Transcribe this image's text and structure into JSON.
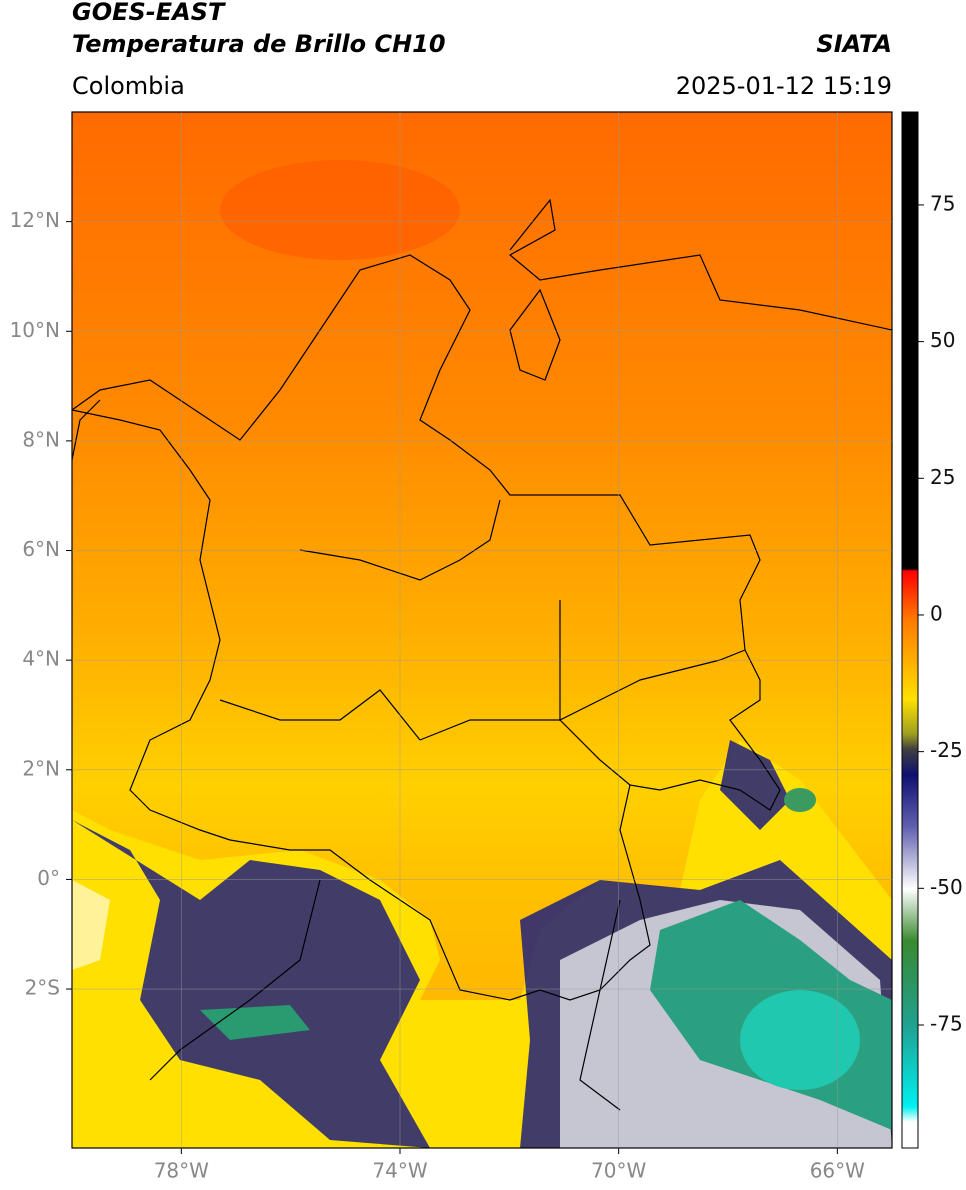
{
  "header": {
    "satellite": "GOES-EAST",
    "product": "Temperatura de Brillo CH10",
    "source": "SIATA",
    "region": "Colombia",
    "timestamp": "2025-01-12 15:19"
  },
  "map": {
    "xlim": [
      -80,
      -65
    ],
    "ylim": [
      -4.9,
      14
    ],
    "xticks": [
      {
        "value": -78,
        "label": "78°W"
      },
      {
        "value": -74,
        "label": "74°W"
      },
      {
        "value": -70,
        "label": "70°W"
      },
      {
        "value": -66,
        "label": "66°W"
      }
    ],
    "yticks": [
      {
        "value": 12,
        "label": "12°N"
      },
      {
        "value": 10,
        "label": "10°N"
      },
      {
        "value": 8,
        "label": "8°N"
      },
      {
        "value": 6,
        "label": "6°N"
      },
      {
        "value": 4,
        "label": "4°N"
      },
      {
        "value": 2,
        "label": "2°N"
      },
      {
        "value": 0,
        "label": "0°"
      },
      {
        "value": -2,
        "label": "2°S"
      }
    ],
    "grid": true
  },
  "colorbar": {
    "lim": [
      -97.5,
      92
    ],
    "ticks": [
      75,
      50,
      25,
      0,
      -25,
      -50,
      -75
    ]
  }
}
